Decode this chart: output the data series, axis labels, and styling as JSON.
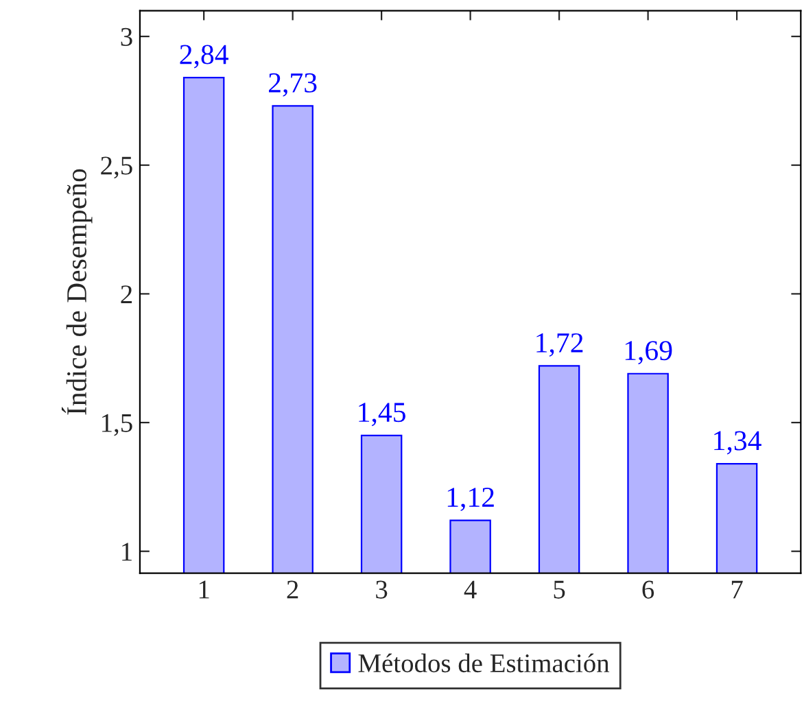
{
  "chart_data": {
    "type": "bar",
    "x": [
      1,
      2,
      3,
      4,
      5,
      6,
      7
    ],
    "series": [
      {
        "name": "Métodos de Estimación",
        "color": "#b3b3ff",
        "values": [
          2.84,
          2.73,
          1.45,
          1.12,
          1.72,
          1.69,
          1.34
        ],
        "value_labels": [
          "2,84",
          "2,73",
          "1,45",
          "1,12",
          "1,72",
          "1,69",
          "1,34"
        ]
      }
    ],
    "ylabel": "Índice de Desempeño",
    "xlim": [
      0.28,
      7.72
    ],
    "xticks": [
      1,
      2,
      3,
      4,
      5,
      6,
      7
    ],
    "ylim": [
      0.915,
      3.1
    ],
    "yticks": [
      1,
      {
        "value": 1.5,
        "label": "1,5"
      },
      2,
      {
        "value": 2.5,
        "label": "2,5"
      },
      3
    ],
    "grid": false,
    "legend": "bottom"
  }
}
